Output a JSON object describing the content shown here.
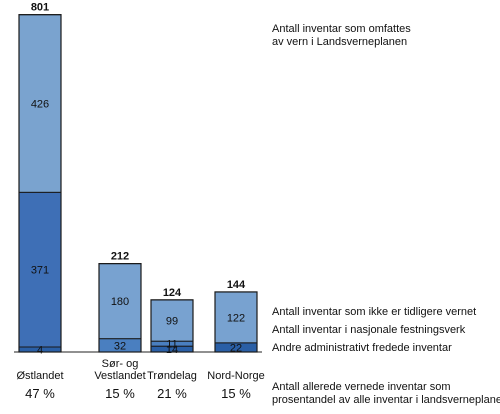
{
  "chart_data": {
    "type": "bar",
    "stacked": true,
    "categories": [
      "Østlandet",
      "Sør- og\nVestlandet",
      "Trøndelag",
      "Nord-Norge"
    ],
    "series": [
      {
        "key": "adm",
        "values": [
          4,
          0,
          14,
          22
        ]
      },
      {
        "key": "festning",
        "values": [
          0,
          32,
          11,
          0
        ]
      },
      {
        "key": "ikke_vernet",
        "values": [
          371,
          180,
          99,
          122
        ]
      },
      {
        "key": "extra",
        "values": [
          426,
          0,
          0,
          0
        ]
      }
    ],
    "totals": [
      801,
      212,
      124,
      144
    ],
    "percentages": [
      "47 %",
      "15 %",
      "21 %",
      "15 %"
    ],
    "colors": {
      "adm": "#2a5fa6",
      "festning": "#4a7fc0",
      "ikke_vernet": "#78a2d0",
      "extra": "#7aa3cf",
      "lower_ost": "#3e6fb6",
      "outline": "#1a1a1a"
    }
  },
  "annotations": {
    "top": "Antall inventar som omfattes\nav vern i Landsverneplanen",
    "ikke_vernet": "Antall inventar som ikke er tidligere vernet",
    "festning": "Antall inventar i nasjonale festningsverk",
    "adm": "Andre administrativt fredede inventar",
    "percentage": "Antall allerede vernede inventar som\nprosentandel av alle inventar i landsverneplanen"
  }
}
